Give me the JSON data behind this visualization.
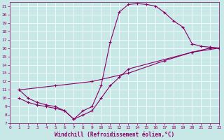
{
  "xlabel": "Windchill (Refroidissement éolien,°C)",
  "bg_color": "#c8e8e8",
  "line_color": "#880066",
  "xlim": [
    0,
    23
  ],
  "ylim": [
    7,
    21.5
  ],
  "yticks": [
    7,
    8,
    9,
    10,
    11,
    12,
    13,
    14,
    15,
    16,
    17,
    18,
    19,
    20,
    21
  ],
  "xticks": [
    0,
    1,
    2,
    3,
    4,
    5,
    6,
    7,
    8,
    9,
    10,
    11,
    12,
    13,
    14,
    15,
    16,
    17,
    18,
    19,
    20,
    21,
    22,
    23
  ],
  "curves": [
    {
      "x": [
        1,
        2,
        3,
        4,
        5,
        6,
        7,
        8,
        9,
        10,
        11,
        12,
        13,
        14,
        15,
        16,
        17,
        18,
        19,
        20,
        21,
        22,
        23
      ],
      "y": [
        11,
        10,
        9.5,
        9.2,
        9.0,
        8.5,
        7.5,
        8.5,
        9.0,
        11.5,
        16.7,
        20.3,
        21.2,
        21.3,
        21.2,
        21.0,
        20.2,
        19.2,
        18.5,
        16.5,
        16.2,
        16.1,
        16.0
      ]
    },
    {
      "x": [
        1,
        5,
        9,
        13,
        17,
        20,
        23
      ],
      "y": [
        11.0,
        11.5,
        12.0,
        13.0,
        14.5,
        15.5,
        16.0
      ]
    },
    {
      "x": [
        1,
        2,
        3,
        4,
        5,
        6,
        7,
        8,
        9,
        10,
        11,
        12,
        13,
        20,
        22,
        23
      ],
      "y": [
        10,
        9.5,
        9.2,
        9.0,
        8.8,
        8.5,
        7.5,
        8.0,
        8.5,
        10.0,
        11.5,
        12.5,
        13.5,
        15.5,
        16.0,
        16.0
      ]
    }
  ]
}
